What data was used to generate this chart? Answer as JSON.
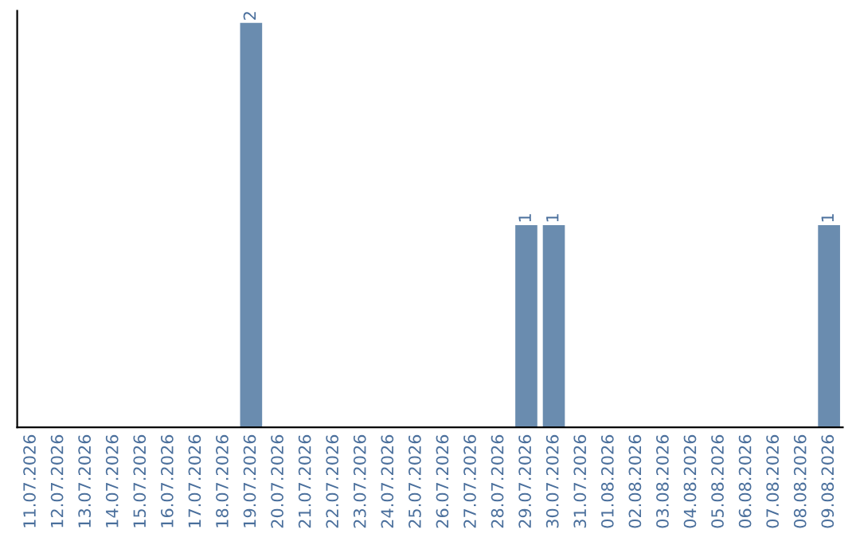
{
  "chart_data": {
    "type": "bar",
    "categories": [
      "11.07.2026",
      "12.07.2026",
      "13.07.2026",
      "14.07.2026",
      "15.07.2026",
      "16.07.2026",
      "17.07.2026",
      "18.07.2026",
      "19.07.2026",
      "20.07.2026",
      "21.07.2026",
      "22.07.2026",
      "23.07.2026",
      "24.07.2026",
      "25.07.2026",
      "26.07.2026",
      "27.07.2026",
      "28.07.2026",
      "29.07.2026",
      "30.07.2026",
      "31.07.2026",
      "01.08.2026",
      "02.08.2026",
      "03.08.2026",
      "04.08.2026",
      "05.08.2026",
      "06.08.2026",
      "07.08.2026",
      "08.08.2026",
      "09.08.2026"
    ],
    "values": [
      0,
      0,
      0,
      0,
      0,
      0,
      0,
      0,
      2,
      0,
      0,
      0,
      0,
      0,
      0,
      0,
      0,
      0,
      1,
      1,
      0,
      0,
      0,
      0,
      0,
      0,
      0,
      0,
      0,
      1
    ],
    "value_labels": [
      null,
      null,
      null,
      null,
      null,
      null,
      null,
      null,
      "2",
      null,
      null,
      null,
      null,
      null,
      null,
      null,
      null,
      null,
      "1",
      "1",
      null,
      null,
      null,
      null,
      null,
      null,
      null,
      null,
      null,
      "1"
    ],
    "color": "#6a8caf",
    "grid": false,
    "legend": false
  }
}
